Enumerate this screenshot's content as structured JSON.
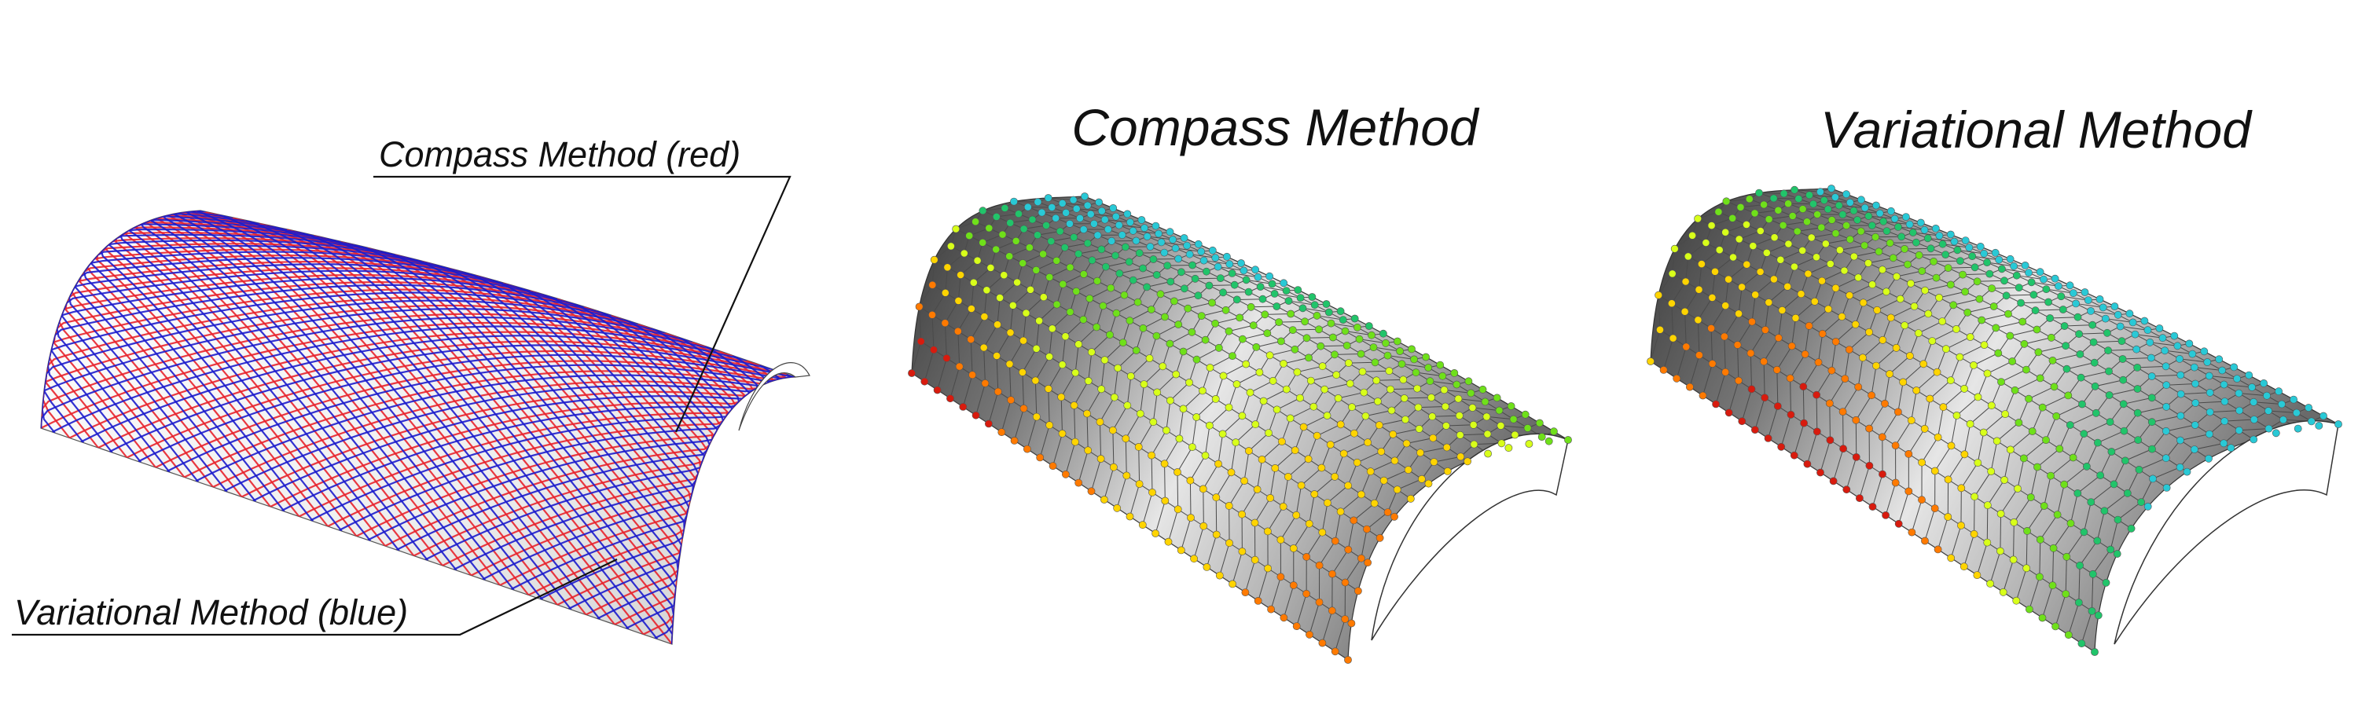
{
  "panels": [
    {
      "id": "overlay",
      "title": ""
    },
    {
      "id": "compass",
      "title": "Compass Method"
    },
    {
      "id": "variational",
      "title": "Variational Method"
    }
  ],
  "annotations": {
    "compass_label": "Compass Method (red)",
    "variational_label": "Variational Method (blue)"
  },
  "colors": {
    "compass_lines": "#e8242c",
    "variational_lines": "#1c1ccc",
    "surface_light": "#f2f2f2",
    "surface_dark": "#2a2a2a",
    "node_scale": [
      "#d81b0e",
      "#ff7a00",
      "#ffd400",
      "#d8ff1a",
      "#6fe01a",
      "#21c46a",
      "#29c9d6"
    ]
  }
}
